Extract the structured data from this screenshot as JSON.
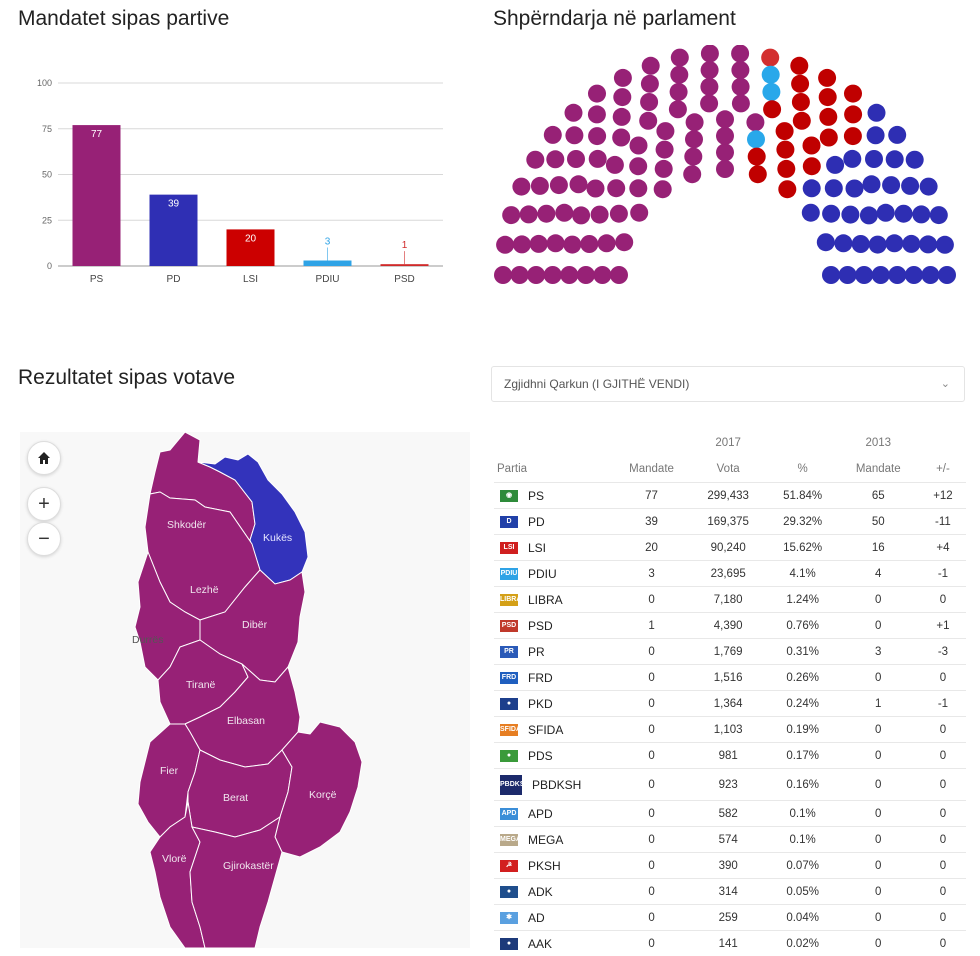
{
  "headings": {
    "bar": "Mandatet sipas partive",
    "parliament": "Shpërndarja në parlament",
    "map": "Rezultatet sipas votave"
  },
  "chart_data": {
    "type": "bar",
    "title": "Mandatet sipas partive",
    "categories": [
      "PS",
      "PD",
      "LSI",
      "PDIU",
      "PSD"
    ],
    "values": [
      77,
      39,
      20,
      3,
      1
    ],
    "value_labels": [
      "77",
      "39",
      "20",
      "3",
      "1"
    ],
    "colors": [
      "#972176",
      "#2f2fb4",
      "#cc0000",
      "#2fa3e6",
      "#d02a2a"
    ],
    "yticks": [
      0,
      25,
      50,
      75,
      100
    ],
    "ylim": [
      0,
      100
    ],
    "grid": true,
    "xlabel": "",
    "ylabel": ""
  },
  "parliament": {
    "seats": [
      {
        "party": "PS",
        "count": 77,
        "color": "#972176"
      },
      {
        "party": "PSD",
        "count": 1,
        "color": "#d32f2f"
      },
      {
        "party": "PDIU",
        "count": 3,
        "color": "#29a8ea"
      },
      {
        "party": "LSI",
        "count": 20,
        "color": "#c00000"
      },
      {
        "party": "PD",
        "count": 39,
        "color": "#2e2eb3"
      }
    ]
  },
  "map": {
    "regions": [
      "Shkodër",
      "Kukës",
      "Lezhë",
      "Dibër",
      "Durrës",
      "Tiranë",
      "Elbasan",
      "Fier",
      "Berat",
      "Korçë",
      "Vlorë",
      "Gjirokastër"
    ],
    "fill_color": "#972176",
    "alt_fill_color": "#3333bb",
    "controls": {
      "home": "home-icon",
      "zoom_in": "+",
      "zoom_out": "−"
    }
  },
  "select": {
    "value": "Zgjidhni Qarkun (I GJITHË VENDI)",
    "chevron": "⌄"
  },
  "table": {
    "group_headers": {
      "y2017": "2017",
      "y2013": "2013"
    },
    "headers": [
      "Partia",
      "Mandate",
      "Vota",
      "%",
      "Mandate",
      "+/-"
    ],
    "rows": [
      {
        "party": "PS",
        "m2017": "77",
        "votes": "299,433",
        "pct": "51.84%",
        "m2013": "65",
        "diff": "+12",
        "logo_color": "#2e8b3a",
        "logo_text": "◉"
      },
      {
        "party": "PD",
        "m2017": "39",
        "votes": "169,375",
        "pct": "29.32%",
        "m2013": "50",
        "diff": "-11",
        "logo_color": "#2140a8",
        "logo_text": "D"
      },
      {
        "party": "LSI",
        "m2017": "20",
        "votes": "90,240",
        "pct": "15.62%",
        "m2013": "16",
        "diff": "+4",
        "logo_color": "#d01f1f",
        "logo_text": "LSI"
      },
      {
        "party": "PDIU",
        "m2017": "3",
        "votes": "23,695",
        "pct": "4.1%",
        "m2013": "4",
        "diff": "-1",
        "logo_color": "#2fa3e6",
        "logo_text": "PDIU"
      },
      {
        "party": "LIBRA",
        "m2017": "0",
        "votes": "7,180",
        "pct": "1.24%",
        "m2013": "0",
        "diff": "0",
        "logo_color": "#d4a017",
        "logo_text": "LIBRA"
      },
      {
        "party": "PSD",
        "m2017": "1",
        "votes": "4,390",
        "pct": "0.76%",
        "m2013": "0",
        "diff": "+1",
        "logo_color": "#c0392b",
        "logo_text": "PSD"
      },
      {
        "party": "PR",
        "m2017": "0",
        "votes": "1,769",
        "pct": "0.31%",
        "m2013": "3",
        "diff": "-3",
        "logo_color": "#2a5ab8",
        "logo_text": "PR"
      },
      {
        "party": "FRD",
        "m2017": "0",
        "votes": "1,516",
        "pct": "0.26%",
        "m2013": "0",
        "diff": "0",
        "logo_color": "#1f5fbf",
        "logo_text": "FRD"
      },
      {
        "party": "PKD",
        "m2017": "0",
        "votes": "1,364",
        "pct": "0.24%",
        "m2013": "1",
        "diff": "-1",
        "logo_color": "#1d3f8c",
        "logo_text": "●"
      },
      {
        "party": "SFIDA",
        "m2017": "0",
        "votes": "1,103",
        "pct": "0.19%",
        "m2013": "0",
        "diff": "0",
        "logo_color": "#e67e22",
        "logo_text": "SFIDA"
      },
      {
        "party": "PDS",
        "m2017": "0",
        "votes": "981",
        "pct": "0.17%",
        "m2013": "0",
        "diff": "0",
        "logo_color": "#3a9a3a",
        "logo_text": "●"
      },
      {
        "party": "PBDKSH",
        "m2017": "0",
        "votes": "923",
        "pct": "0.16%",
        "m2013": "0",
        "diff": "0",
        "logo_color": "#1c2a6b",
        "logo_text": "PBDKSH",
        "tall": true
      },
      {
        "party": "APD",
        "m2017": "0",
        "votes": "582",
        "pct": "0.1%",
        "m2013": "0",
        "diff": "0",
        "logo_color": "#3b8ed8",
        "logo_text": "APD"
      },
      {
        "party": "MEGA",
        "m2017": "0",
        "votes": "574",
        "pct": "0.1%",
        "m2013": "0",
        "diff": "0",
        "logo_color": "#b9a98a",
        "logo_text": "MEGA"
      },
      {
        "party": "PKSH",
        "m2017": "0",
        "votes": "390",
        "pct": "0.07%",
        "m2013": "0",
        "diff": "0",
        "logo_color": "#d21f1f",
        "logo_text": "☭"
      },
      {
        "party": "ADK",
        "m2017": "0",
        "votes": "314",
        "pct": "0.05%",
        "m2013": "0",
        "diff": "0",
        "logo_color": "#1f4e8c",
        "logo_text": "●"
      },
      {
        "party": "AD",
        "m2017": "0",
        "votes": "259",
        "pct": "0.04%",
        "m2013": "0",
        "diff": "0",
        "logo_color": "#5aa0e0",
        "logo_text": "✱"
      },
      {
        "party": "AAK",
        "m2017": "0",
        "votes": "141",
        "pct": "0.02%",
        "m2013": "0",
        "diff": "0",
        "logo_color": "#1d3a7a",
        "logo_text": "●"
      }
    ]
  }
}
